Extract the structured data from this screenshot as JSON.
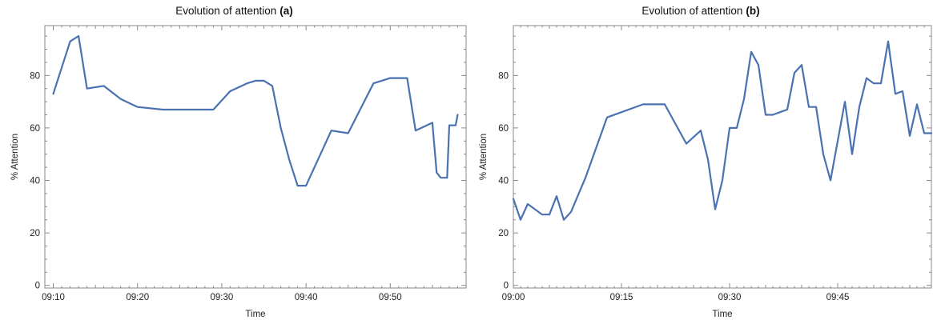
{
  "chart_data": [
    {
      "type": "line",
      "title": "Evolution of attention",
      "title_tag": "(a)",
      "xlabel": "Time",
      "ylabel": "% Attention",
      "xlim": [
        "09:09",
        "09:59"
      ],
      "ylim": [
        -1,
        99
      ],
      "x_ticks": [
        "09:10",
        "09:20",
        "09:30",
        "09:40",
        "09:50"
      ],
      "y_ticks": [
        0,
        20,
        40,
        60,
        80
      ],
      "grid": false,
      "color": "#4a72b0",
      "series": [
        {
          "x": [
            "09:10",
            "09:12",
            "09:13",
            "09:14",
            "09:16",
            "09:18",
            "09:20",
            "09:23",
            "09:29",
            "09:31",
            "09:33",
            "09:34",
            "09:35",
            "09:36",
            "09:37",
            "09:38",
            "09:39",
            "09:40",
            "09:43",
            "09:45",
            "09:48",
            "09:50",
            "09:52",
            "09:53",
            "09:55",
            "09:55:30",
            "09:56",
            "09:56:45",
            "09:57",
            "09:57:45",
            "09:58"
          ],
          "y": [
            73,
            93,
            95,
            75,
            76,
            71,
            68,
            67,
            67,
            74,
            77,
            78,
            78,
            76,
            60,
            48,
            38,
            38,
            59,
            58,
            77,
            79,
            79,
            59,
            62,
            43,
            41,
            41,
            61,
            61,
            65
          ]
        }
      ]
    },
    {
      "type": "line",
      "title": "Evolution of attention",
      "title_tag": "(b)",
      "xlabel": "Time",
      "ylabel": "% Attention",
      "xlim": [
        "09:00",
        "09:58"
      ],
      "ylim": [
        -1,
        99
      ],
      "x_ticks": [
        "09:00",
        "09:15",
        "09:30",
        "09:45"
      ],
      "y_ticks": [
        0,
        20,
        40,
        60,
        80
      ],
      "grid": false,
      "color": "#4a72b0",
      "series": [
        {
          "x": [
            "09:00",
            "09:01",
            "09:02",
            "09:04",
            "09:05",
            "09:06",
            "09:07",
            "09:08",
            "09:10",
            "09:13",
            "09:18",
            "09:21",
            "09:24",
            "09:26",
            "09:27",
            "09:28",
            "09:29",
            "09:30",
            "09:31",
            "09:32",
            "09:33",
            "09:34",
            "09:35",
            "09:36",
            "09:37",
            "09:38",
            "09:39",
            "09:40",
            "09:41",
            "09:42",
            "09:43",
            "09:44",
            "09:45",
            "09:46",
            "09:47",
            "09:48",
            "09:49",
            "09:50",
            "09:51",
            "09:52",
            "09:53",
            "09:54",
            "09:55",
            "09:56",
            "09:57",
            "09:58"
          ],
          "y": [
            33,
            25,
            31,
            27,
            27,
            34,
            25,
            28,
            41,
            64,
            69,
            69,
            54,
            59,
            48,
            29,
            40,
            60,
            60,
            71,
            89,
            84,
            65,
            65,
            66,
            67,
            81,
            84,
            68,
            68,
            50,
            40,
            55,
            70,
            50,
            68,
            79,
            77,
            77,
            93,
            73,
            74,
            57,
            69,
            58,
            58
          ]
        }
      ]
    }
  ]
}
